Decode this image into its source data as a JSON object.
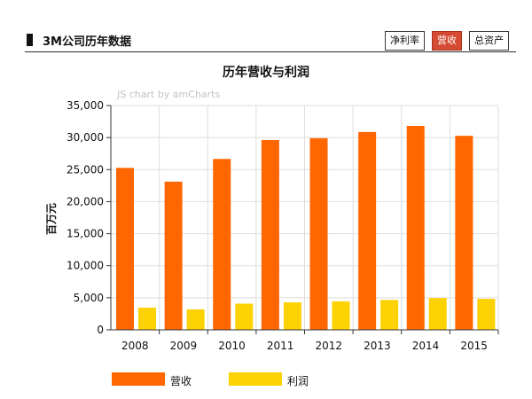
{
  "header": {
    "title": "3M公司历年数据",
    "tabs": [
      {
        "label": "净利率",
        "active": false
      },
      {
        "label": "营收",
        "active": true
      },
      {
        "label": "总资产",
        "active": false
      }
    ]
  },
  "credit": "JS chart by amCharts",
  "chart_data": {
    "type": "bar",
    "title": "历年营收与利润",
    "xlabel": "",
    "ylabel": "百万元",
    "categories": [
      "2008",
      "2009",
      "2010",
      "2011",
      "2012",
      "2013",
      "2014",
      "2015"
    ],
    "series": [
      {
        "name": "营收",
        "color": "#ff6600",
        "values": [
          25269,
          23123,
          26662,
          29611,
          29904,
          30871,
          31821,
          30274
        ]
      },
      {
        "name": "利润",
        "color": "#fcd202",
        "values": [
          3460,
          3193,
          4085,
          4283,
          4444,
          4659,
          4956,
          4833
        ]
      }
    ],
    "ylim": [
      0,
      35000
    ],
    "yticks": [
      0,
      5000,
      10000,
      15000,
      20000,
      25000,
      30000,
      35000
    ],
    "ytick_labels": [
      "0",
      "5,000",
      "10,000",
      "15,000",
      "20,000",
      "25,000",
      "30,000",
      "35,000"
    ],
    "grid": true,
    "legend_position": "bottom-left"
  }
}
